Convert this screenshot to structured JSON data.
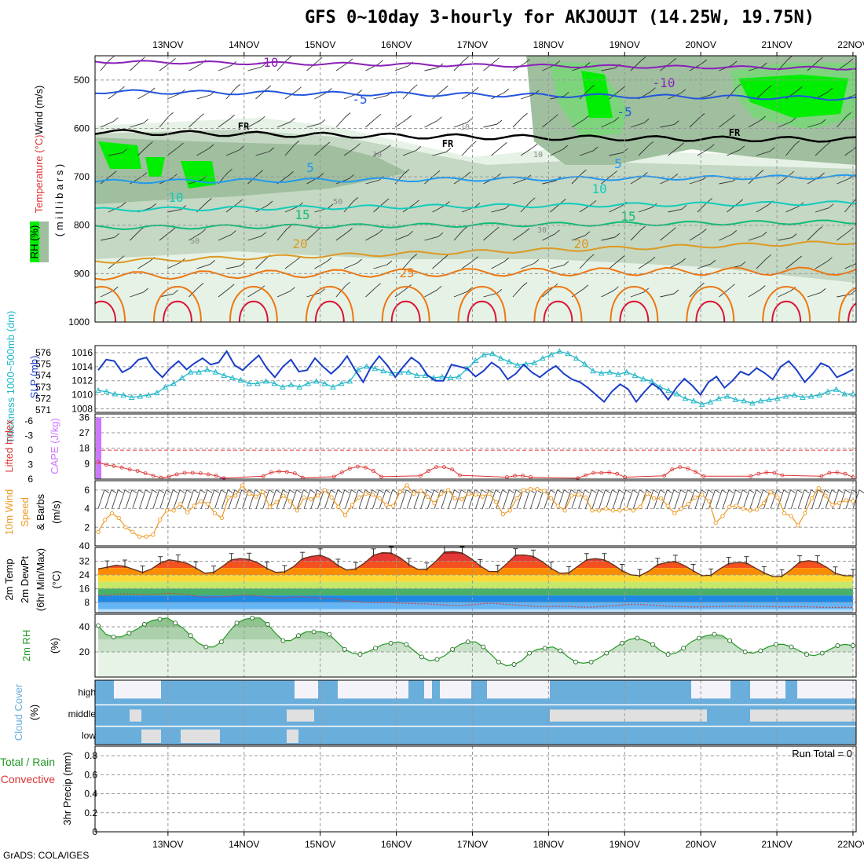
{
  "title": "GFS 0~10day 3-hourly for AKJOUJT (14.25W, 19.75N)",
  "credit": "GrADS: COLA/IGES",
  "colors": {
    "rh_light": "#e6f2e6",
    "rh_mid": "#c4d8c4",
    "rh_dark": "#9fbf9f",
    "rh_green": "#7dd47d",
    "rh_bright": "#00ee00",
    "temp_purple": "#8a1fb8",
    "temp_blue": "#2255dd",
    "temp_lightblue": "#2299ee",
    "temp_teal": "#11ccbb",
    "temp_green": "#11bb77",
    "temp_orange": "#dd9922",
    "temp_darkorange": "#ee7711",
    "temp_red": "#dd1133",
    "slp": "#1a3ec8",
    "thickness": "#22b8c8",
    "cape": "#cc77ff",
    "lifted": "#dd3333",
    "wind10": "#ee9922",
    "rh2m": "#229922",
    "cloud": "#6aaedc",
    "cloud_clear": "#f5f3fa",
    "cloud_gray": "#e0e0e0"
  },
  "chart_data": {
    "type": "meteogram",
    "x_days": [
      "13NOV",
      "14NOV",
      "15NOV",
      "16NOV",
      "17NOV",
      "18NOV",
      "19NOV",
      "20NOV",
      "21NOV",
      "22NOV"
    ],
    "x_range_hours": [
      -11,
      229
    ],
    "panels": {
      "upper_air": {
        "ylabel_parts": [
          "RH (%)",
          "Temperature (°C)",
          "Wind (m/s)"
        ],
        "ylabel_units": "( m i l l i b a r s )",
        "y_ticks": [
          500,
          600,
          700,
          800,
          900,
          1000
        ],
        "ylim": [
          450,
          1000
        ],
        "isotherms": [
          {
            "label": "-10",
            "level": 470
          },
          {
            "label": "-5",
            "level": 530
          },
          {
            "label": "FR",
            "level": 615
          },
          {
            "label": "5",
            "level": 705
          },
          {
            "label": "10",
            "level": 760
          },
          {
            "label": "15",
            "level": 800
          },
          {
            "label": "20",
            "level": 850
          },
          {
            "label": "25",
            "level": 895
          }
        ],
        "rh_labels": [
          "30",
          "50",
          "10"
        ]
      },
      "slp_thickness": {
        "ylabel_left": "Thickness 1000~500mb (dm)",
        "ylabel_right": "SLP (mb)",
        "thickness_ticks": [
          571,
          572,
          573,
          574,
          575,
          576
        ],
        "slp_ticks": [
          1008,
          1010,
          1012,
          1014,
          1016
        ],
        "thickness": [
          572.7,
          572.6,
          572.4,
          572.3,
          572.1,
          572.2,
          572.3,
          572.5,
          573.0,
          573.3,
          573.8,
          574.3,
          574.3,
          574.5,
          574.3,
          574.0,
          573.8,
          573.6,
          573.3,
          573.3,
          573.5,
          573.3,
          573.0,
          573.2,
          573.0,
          573.3,
          573.5,
          573.3,
          573.0,
          573.3,
          573.5,
          574.5,
          574.8,
          574.6,
          574.4,
          574.2,
          574.3,
          574.3,
          574.0,
          574.0,
          573.8,
          573.9,
          573.8,
          573.9,
          574.6,
          575.3,
          575.8,
          575.9,
          575.5,
          575.2,
          574.9,
          575.0,
          575.1,
          575.5,
          575.8,
          576.1,
          575.9,
          575.5,
          575.0,
          574.4,
          574.2,
          574.3,
          574.1,
          574.3,
          574.0,
          573.7,
          573.5,
          573.0,
          572.7,
          572.4,
          572.0,
          571.8,
          571.5,
          571.7,
          572.0,
          572.2,
          571.9,
          571.8,
          571.6,
          571.8,
          571.9,
          572.0,
          572.2,
          572.3,
          572.1,
          572.2,
          572.3,
          572.6,
          572.8,
          572.4,
          572.4
        ],
        "slp": [
          1013.5,
          1015.0,
          1014.8,
          1013.2,
          1013.8,
          1015.0,
          1015.3,
          1013.6,
          1012.5,
          1013.8,
          1014.8,
          1013.6,
          1014.5,
          1015.2,
          1014.3,
          1014.6,
          1016.2,
          1014.2,
          1013.5,
          1014.6,
          1015.6,
          1013.8,
          1012.5,
          1014.0,
          1015.0,
          1013.3,
          1013.5,
          1015.2,
          1014.0,
          1013.0,
          1014.0,
          1015.5,
          1013.5,
          1011.8,
          1014.0,
          1015.5,
          1014.2,
          1012.5,
          1014.0,
          1015.3,
          1014.5,
          1012.8,
          1012.0,
          1012.0,
          1014.3,
          1014.0,
          1013.7,
          1012.6,
          1013.4,
          1014.6,
          1013.8,
          1012.2,
          1013.0,
          1014.3,
          1013.2,
          1012.5,
          1013.4,
          1014.1,
          1013.0,
          1012.2,
          1011.8,
          1011.0,
          1010.0,
          1009.0,
          1010.5,
          1011.5,
          1010.8,
          1009.0,
          1010.4,
          1011.6,
          1010.8,
          1009.3,
          1011.0,
          1012.3,
          1011.3,
          1010.0,
          1011.8,
          1012.6,
          1011.0,
          1012.0,
          1013.3,
          1012.8,
          1013.8,
          1013.1,
          1012.2,
          1014.0,
          1014.8,
          1013.5,
          1011.8,
          1013.0,
          1014.5,
          1014.0,
          1012.5,
          1013.0,
          1013.6
        ]
      },
      "cape_li": {
        "ylabel_left": "Lifted Index",
        "ylabel_right": "CAPE (J/kg)",
        "li_ticks": [
          -6,
          -3,
          0,
          3,
          6
        ],
        "cape_ticks": [
          9,
          18,
          27,
          36
        ],
        "cape_bars": [
          {
            "hour": -10,
            "value": 36
          },
          {
            "hour": 29,
            "value": 1
          }
        ],
        "lifted_index": [
          2.5,
          3.0,
          3.3,
          3.6,
          4.0,
          4.3,
          4.8,
          5.3,
          5.7,
          5.5,
          5.0,
          4.7,
          4.7,
          4.8,
          5.0,
          5.3,
          5.8,
          6.0,
          6.4,
          6.6,
          6.2,
          5.4,
          4.6,
          4.4,
          4.5,
          4.8,
          5.7,
          6.0,
          6.6,
          6.3,
          5.5,
          4.6,
          3.8,
          3.4,
          3.6,
          4.3,
          5.5,
          6.2,
          6.8,
          6.7,
          6.3,
          5.3,
          4.3,
          3.5,
          3.5,
          4.0,
          5.2,
          6.3,
          6.8,
          6.9,
          6.6,
          6.3,
          5.6,
          5.3,
          5.3,
          5.6,
          6.1,
          6.6,
          6.9,
          6.9,
          6.5,
          5.8,
          5.2,
          4.7,
          4.7,
          4.6,
          4.9,
          5.6,
          6.4,
          6.9,
          6.9,
          6.3,
          5.3,
          4.0,
          3.5,
          3.8,
          4.5,
          5.4,
          6.3,
          6.9,
          6.9,
          6.6,
          6.0,
          5.4,
          4.9,
          4.6,
          4.7,
          5.2,
          6.0,
          6.6,
          6.9,
          6.3,
          5.4,
          4.7,
          4.6,
          4.9,
          5.6
        ]
      },
      "wind10m": {
        "ylabel_parts": [
          "10m Wind",
          "Speed",
          "& Barbs"
        ],
        "ylabel_units": "(m/s)",
        "y_ticks": [
          2,
          4,
          6
        ],
        "ylim": [
          0,
          7
        ],
        "speed": [
          1.5,
          2.8,
          3.5,
          3.0,
          2.0,
          1.5,
          1.0,
          1.0,
          1.2,
          2.8,
          3.8,
          3.8,
          4.5,
          3.6,
          4.3,
          4.8,
          4.5,
          3.5,
          3.0,
          5.2,
          5.4,
          6.5,
          5.6,
          5.3,
          5.8,
          4.2,
          4.7,
          5.4,
          4.8,
          3.8,
          5.2,
          5.0,
          5.4,
          6.0,
          5.2,
          4.2,
          3.3,
          4.4,
          5.2,
          5.6,
          5.5,
          5.1,
          4.4,
          4.3,
          5.8,
          6.5,
          5.6,
          5.9,
          5.3,
          4.6,
          5.6,
          6.0,
          5.1,
          5.0,
          5.6,
          5.5,
          5.3,
          5.6,
          4.7,
          3.4,
          3.8,
          5.1,
          6.0,
          6.1,
          6.1,
          5.9,
          5.1,
          4.3,
          3.8,
          5.4,
          5.5,
          5.2,
          3.8,
          3.8,
          4.0,
          3.8,
          3.8,
          4.0,
          3.8,
          4.2,
          5.6,
          5.1,
          5.1,
          4.3,
          3.5,
          4.0,
          4.5,
          5.2,
          5.5,
          4.8,
          2.5,
          3.2,
          4.2,
          4.3,
          4.0,
          3.8,
          3.9,
          4.6,
          5.8,
          5.2,
          3.5,
          3.2,
          2.2,
          3.5,
          5.1,
          6.2,
          5.4,
          4.4,
          4.6,
          4.9,
          4.8
        ]
      },
      "temp2m": {
        "ylabel_parts": [
          "2m Temp",
          "2m DewPt",
          "(6hr Min/Max)"
        ],
        "ylabel_units": "(°C)",
        "y_ticks": [
          8,
          16,
          24,
          32,
          40
        ],
        "ylim": [
          2,
          40
        ],
        "temp": [
          27.5,
          28.5,
          29.6,
          29.0,
          27.2,
          25.5,
          27.5,
          31.0,
          32.8,
          32.0,
          30.8,
          28.0,
          25.0,
          25.5,
          29.0,
          32.8,
          33.5,
          33.0,
          31.0,
          27.8,
          25.5,
          25.8,
          28.8,
          33.5,
          34.8,
          35.5,
          33.5,
          29.5,
          26.8,
          27.5,
          31.0,
          35.5,
          37.0,
          36.8,
          34.0,
          30.0,
          27.2,
          27.3,
          31.8,
          37.3,
          37.6,
          36.8,
          33.5,
          29.3,
          26.0,
          26.0,
          30.5,
          35.6,
          35.6,
          34.8,
          31.8,
          27.8,
          25.0,
          25.2,
          29.0,
          32.8,
          33.5,
          32.8,
          30.0,
          26.5,
          24.0,
          23.5,
          26.2,
          30.0,
          31.2,
          31.8,
          29.5,
          26.5,
          23.5,
          23.8,
          27.5,
          30.6,
          31.2,
          31.0,
          28.0,
          25.2,
          23.0,
          23.3,
          27.0,
          31.5,
          32.3,
          31.5,
          28.6,
          25.0,
          23.5,
          23.5
        ],
        "dewpoint": [
          12.2,
          12.0,
          12.4,
          13.0,
          12.7,
          12.5,
          12.4,
          12.8,
          13.3,
          13.0,
          12.5,
          11.7,
          11.0,
          11.2,
          11.3,
          11.8,
          12.3,
          12.2,
          12.0,
          11.0,
          10.5,
          10.7,
          11.0,
          11.3,
          10.7,
          10.5,
          10.2,
          9.6,
          9.0,
          8.5,
          8.0,
          7.8,
          8.0,
          7.9,
          7.6,
          7.3,
          7.2,
          7.1,
          6.8,
          6.5,
          6.3,
          6.3,
          6.5,
          7.1,
          7.5,
          7.2,
          6.8,
          6.5,
          6.2,
          5.8,
          5.5,
          5.5,
          5.8,
          5.6,
          5.3,
          5.2,
          5.3,
          5.8,
          6.0,
          6.5,
          6.8,
          6.8,
          6.5,
          6.2,
          5.8,
          5.6,
          5.5,
          5.3,
          5.4,
          5.5,
          5.6,
          5.8,
          5.8,
          5.6,
          5.6,
          5.6,
          5.5,
          5.3,
          5.4,
          5.5,
          5.4,
          5.2,
          5.0,
          5.0,
          5.1,
          5.0
        ]
      },
      "rh2m": {
        "ylabel": "2m RH",
        "ylabel_units": "(%)",
        "y_ticks": [
          20,
          40
        ],
        "ylim": [
          0,
          50
        ],
        "rh": [
          41,
          34,
          32,
          32,
          35,
          38,
          42,
          45,
          46,
          47,
          43,
          39,
          33,
          27,
          24,
          24,
          28,
          36,
          43,
          46,
          47,
          47,
          42,
          35,
          29,
          29,
          33,
          36,
          36,
          36,
          34,
          28,
          22,
          19,
          18,
          20,
          23,
          26,
          27,
          28,
          26,
          21,
          16,
          13,
          14,
          17,
          22,
          26,
          28,
          28,
          24,
          18,
          12,
          9,
          10,
          13,
          19,
          22,
          23,
          24,
          21,
          16,
          12,
          11,
          12,
          15,
          19,
          23,
          27,
          30,
          31,
          29,
          26,
          21,
          18,
          19,
          23,
          28,
          31,
          33,
          34,
          33,
          29,
          24,
          20,
          19,
          21,
          24,
          26,
          26,
          24,
          21,
          18,
          17,
          19,
          22,
          25,
          26,
          25
        ]
      },
      "cloud": {
        "ylabel": "Cloud Cover",
        "ylabel_units": "(%)",
        "layers": [
          "high",
          "middle",
          "low"
        ]
      },
      "precip": {
        "ylabel_parts": [
          "Total / Rain",
          "Convective"
        ],
        "ylabel": "3hr Precip (mm)",
        "y_ticks": [
          "0",
          "0.2",
          "0.4",
          "0.6",
          "0.8"
        ],
        "ylim": [
          0,
          0.9
        ],
        "run_total_label": "Run Total = 0",
        "values": []
      }
    }
  }
}
